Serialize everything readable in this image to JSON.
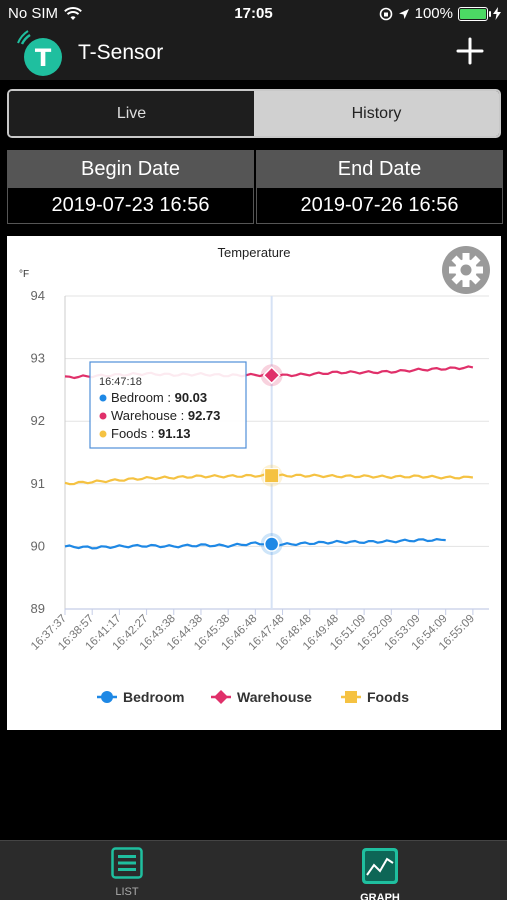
{
  "status_bar": {
    "carrier": "No SIM",
    "time": "17:05",
    "battery": "100%"
  },
  "header": {
    "title": "T-Sensor",
    "logo_letter": "T",
    "add_icon": "plus-icon"
  },
  "segments": {
    "live": "Live",
    "history": "History",
    "selected": "History"
  },
  "dates": {
    "begin_label": "Begin Date",
    "begin_value": "2019-07-23  16:56",
    "end_label": "End Date",
    "end_value": "2019-07-26  16:56"
  },
  "chart_data": {
    "type": "line",
    "title": "Temperature",
    "ylabel": "°F",
    "ylim": [
      89,
      94
    ],
    "yticks": [
      "94",
      "93",
      "92",
      "91",
      "90",
      "89"
    ],
    "x": [
      "16:37:37",
      "16:38:57",
      "16:41:17",
      "16:42:27",
      "16:43:38",
      "16:44:38",
      "16:45:38",
      "16:46:48",
      "16:47:48",
      "16:48:48",
      "16:49:48",
      "16:51:09",
      "16:52:09",
      "16:53:09",
      "16:54:09",
      "16:55:09"
    ],
    "series": [
      {
        "name": "Bedroom",
        "color": "#1e88e5",
        "marker": "circle",
        "values": [
          90.0,
          89.98,
          90.0,
          90.01,
          90.0,
          90.02,
          90.01,
          90.05,
          90.03,
          90.05,
          90.07,
          90.07,
          90.08,
          90.1,
          90.1,
          null
        ]
      },
      {
        "name": "Warehouse",
        "color": "#e0306a",
        "marker": "diamond",
        "values": [
          92.7,
          92.72,
          92.74,
          92.76,
          92.74,
          92.75,
          92.73,
          92.74,
          92.73,
          92.75,
          92.78,
          92.78,
          92.79,
          92.82,
          92.84,
          92.86
        ]
      },
      {
        "name": "Foods",
        "color": "#f5c242",
        "marker": "square",
        "values": [
          91.0,
          91.03,
          91.06,
          91.09,
          91.1,
          91.12,
          91.12,
          91.13,
          91.13,
          91.13,
          91.12,
          91.12,
          91.11,
          91.12,
          91.1,
          91.1
        ]
      }
    ],
    "tooltip": {
      "time": "16:47:18",
      "rows": [
        {
          "name": "Bedroom",
          "value": "90.03",
          "color": "#1e88e5"
        },
        {
          "name": "Warehouse",
          "value": "92.73",
          "color": "#e0306a"
        },
        {
          "name": "Foods",
          "value": "91.13",
          "color": "#f5c242"
        }
      ]
    },
    "crosshair_index": 7.6,
    "legend_position": "bottom-center",
    "grid": true
  },
  "tabbar": {
    "list_label": "LIST",
    "graph_label": "GRAPH",
    "selected": "GRAPH"
  }
}
